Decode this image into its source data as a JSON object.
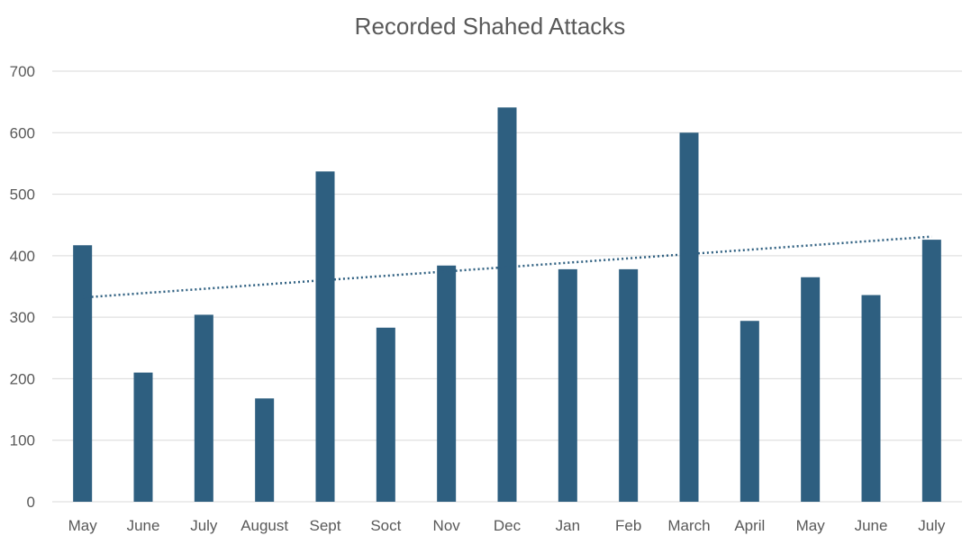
{
  "chart_data": {
    "type": "bar",
    "title": "Recorded Shahed Attacks",
    "xlabel": "",
    "ylabel": "",
    "categories": [
      "May",
      "June",
      "July",
      "August",
      "Sept",
      "Soct",
      "Nov",
      "Dec",
      "Jan",
      "Feb",
      "March",
      "April",
      "May",
      "June",
      "July"
    ],
    "series": [
      {
        "values": [
          417,
          210,
          304,
          168,
          537,
          283,
          384,
          641,
          378,
          378,
          600,
          294,
          365,
          336,
          426
        ]
      }
    ],
    "trendline": {
      "type": "linear",
      "style": "dotted",
      "start": 332,
      "end": 431
    },
    "ylim": [
      0,
      700
    ],
    "yticks": [
      0,
      100,
      200,
      300,
      400,
      500,
      600,
      700
    ],
    "grid": true,
    "legend": "none",
    "colors": {
      "bar": "#2E5F80",
      "trendline": "#2E5F80",
      "gridline": "#D9D9D9",
      "text": "#595959"
    }
  }
}
